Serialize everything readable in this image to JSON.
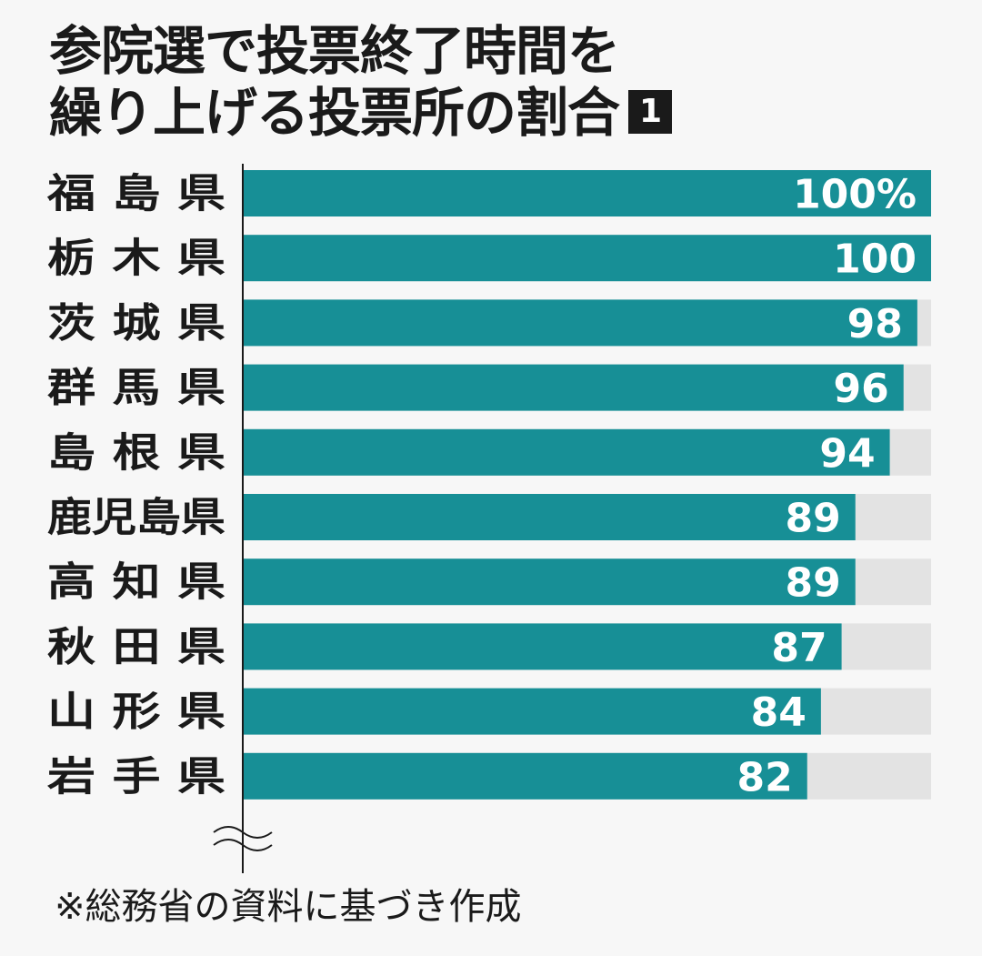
{
  "header": {
    "title_line1": "参院選で投票終了時間を",
    "title_line2": "繰り上げる投票所の割合",
    "badge": "1"
  },
  "colors": {
    "bar": "#178f96",
    "track": "#e3e3e3",
    "axis": "#1a1a1a"
  },
  "chart_data": {
    "type": "bar",
    "orientation": "horizontal",
    "categories": [
      "福 島 県",
      "栃 木 県",
      "茨 城 県",
      "群 馬 県",
      "島 根 県",
      "鹿児島県",
      "高 知 県",
      "秋 田 県",
      "山 形 県",
      "岩 手 県"
    ],
    "values": [
      100,
      100,
      98,
      96,
      94,
      89,
      89,
      87,
      84,
      82
    ],
    "data_labels": [
      "100%",
      "100",
      "98",
      "96",
      "94",
      "89",
      "89",
      "87",
      "84",
      "82"
    ],
    "xlim": [
      0,
      100
    ],
    "axis_break": true,
    "grid": false,
    "legend": false
  },
  "footnote": "※総務省の資料に基づき作成"
}
